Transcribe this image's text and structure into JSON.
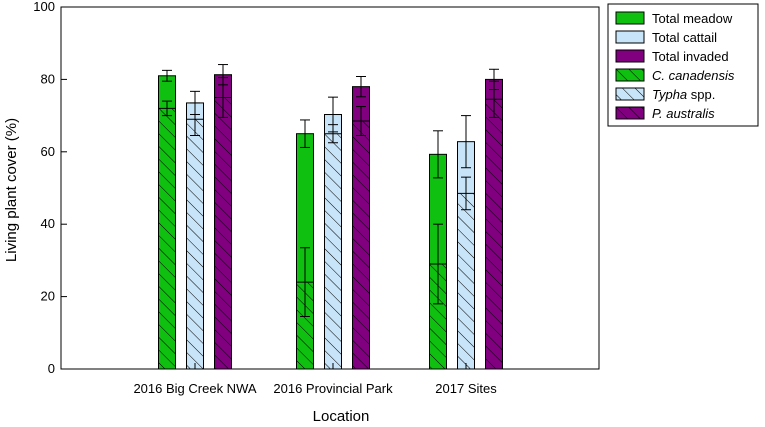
{
  "chart_data": {
    "type": "bar",
    "xlabel": "Location",
    "ylabel": "Living plant cover (%)",
    "ylim": [
      0,
      100
    ],
    "yticks": [
      0,
      20,
      40,
      60,
      80,
      100
    ],
    "grid": false,
    "legend_position": "outside-right",
    "categories": [
      "2016 Big Creek NWA",
      "2016 Provincial Park",
      "2017 Sites"
    ],
    "groups": [
      "meadow",
      "cattail",
      "invaded"
    ],
    "series": [
      {
        "name": "Total meadow",
        "group": "meadow",
        "kind": "total",
        "color": "#10c010",
        "values": [
          81,
          65,
          59.3
        ],
        "errors": [
          1.5,
          3.8,
          6.5
        ]
      },
      {
        "name": "Total cattail",
        "group": "cattail",
        "kind": "total",
        "color": "#c8e4f8",
        "values": [
          73.5,
          70.3,
          62.8
        ],
        "errors": [
          3.2,
          4.8,
          7.2
        ]
      },
      {
        "name": "Total invaded",
        "group": "invaded",
        "kind": "total",
        "color": "#800080",
        "values": [
          81.3,
          78,
          80
        ],
        "errors": [
          2.8,
          2.8,
          2.8
        ]
      },
      {
        "name": "C. canadensis",
        "group": "meadow",
        "kind": "species",
        "color": "#10c010",
        "values": [
          72,
          24,
          29
        ],
        "errors": [
          2,
          9.5,
          11
        ]
      },
      {
        "name": "Typha",
        "name_suffix": " spp.",
        "group": "cattail",
        "kind": "species",
        "color": "#c8e4f8",
        "values": [
          69,
          65,
          48.5
        ],
        "errors": [
          4.5,
          2.5,
          4.5
        ]
      },
      {
        "name": "P. australis",
        "group": "invaded",
        "kind": "species",
        "color": "#800080",
        "values": [
          75,
          68.5,
          74.5
        ],
        "errors": [
          5.5,
          4,
          5
        ]
      }
    ],
    "legend": [
      {
        "label": "Total meadow",
        "italic": false,
        "suffix": "",
        "pattern": false,
        "color": "#10c010"
      },
      {
        "label": "Total cattail",
        "italic": false,
        "suffix": "",
        "pattern": false,
        "color": "#c8e4f8"
      },
      {
        "label": "Total invaded",
        "italic": false,
        "suffix": "",
        "pattern": false,
        "color": "#800080"
      },
      {
        "label": "C. canadensis",
        "italic": true,
        "suffix": "",
        "pattern": true,
        "color": "#10c010"
      },
      {
        "label": "Typha",
        "italic": true,
        "suffix": " spp.",
        "pattern": true,
        "color": "#c8e4f8"
      },
      {
        "label": "P. australis",
        "italic": true,
        "suffix": "",
        "pattern": true,
        "color": "#800080"
      }
    ]
  }
}
